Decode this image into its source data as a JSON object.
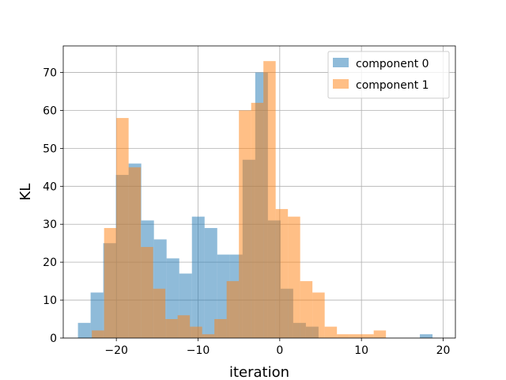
{
  "chart_data": {
    "type": "bar",
    "subtype": "histogram",
    "xlabel": "iteration",
    "ylabel": "KL",
    "xlim": [
      -26.5,
      21.5
    ],
    "ylim": [
      0,
      77
    ],
    "xticks": [
      -20,
      -10,
      0,
      10,
      20
    ],
    "yticks": [
      0,
      10,
      20,
      30,
      40,
      50,
      60,
      70
    ],
    "xtick_labels": [
      "−20",
      "−10",
      "0",
      "10",
      "20"
    ],
    "ytick_labels": [
      "0",
      "10",
      "20",
      "30",
      "40",
      "50",
      "60",
      "70"
    ],
    "grid": true,
    "legend_position": "top-right",
    "series": [
      {
        "name": "component 0",
        "color": "#1f77b4",
        "alpha": 0.5,
        "bin_edges": [
          -24.7,
          -23.15,
          -21.6,
          -20.05,
          -18.5,
          -16.95,
          -15.4,
          -13.85,
          -12.3,
          -10.75,
          -9.2,
          -7.65,
          -6.1,
          -4.55,
          -3.0,
          -1.45,
          0.1,
          1.65,
          3.2,
          4.75,
          6.3,
          7.85,
          9.4,
          10.95,
          12.5,
          14.05,
          15.6,
          17.15,
          18.7,
          20.25
        ],
        "counts": [
          4,
          12,
          25,
          43,
          46,
          31,
          26,
          21,
          17,
          32,
          29,
          22,
          22,
          47,
          70,
          31,
          13,
          4,
          3,
          0,
          0,
          0,
          0,
          0,
          0,
          0,
          0,
          1,
          0
        ]
      },
      {
        "name": "component 1",
        "color": "#ff7f0e",
        "alpha": 0.5,
        "bin_edges": [
          -23.0,
          -21.5,
          -20.0,
          -18.5,
          -17.0,
          -15.5,
          -14.0,
          -12.5,
          -11.0,
          -9.5,
          -8.0,
          -6.5,
          -5.0,
          -3.5,
          -2.0,
          -0.5,
          1.0,
          2.5,
          4.0,
          5.5,
          7.0,
          8.5,
          10.0,
          11.5,
          13.0
        ],
        "counts": [
          2,
          29,
          58,
          45,
          24,
          13,
          5,
          6,
          3,
          1,
          5,
          15,
          60,
          62,
          73,
          34,
          32,
          15,
          12,
          3,
          1,
          1,
          1,
          2
        ]
      }
    ]
  }
}
